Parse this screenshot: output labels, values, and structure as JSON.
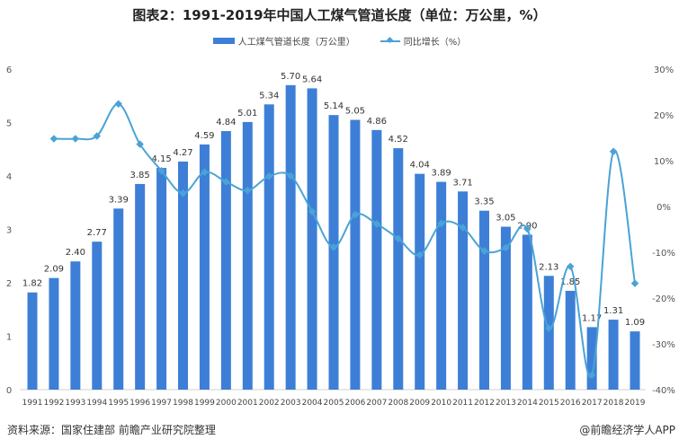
{
  "chart_data": {
    "type": "bar+line",
    "title": "图表2：1991-2019年中国人工煤气管道长度（单位：万公里，%）",
    "categories": [
      "1991",
      "1992",
      "1993",
      "1994",
      "1995",
      "1996",
      "1997",
      "1998",
      "1999",
      "2000",
      "2001",
      "2002",
      "2003",
      "2004",
      "2005",
      "2006",
      "2007",
      "2008",
      "2009",
      "2010",
      "2011",
      "2012",
      "2013",
      "2014",
      "2015",
      "2016",
      "2017",
      "2018",
      "2019"
    ],
    "series": [
      {
        "name": "人工煤气管道长度（万公里）",
        "type": "bar",
        "axis": "left",
        "color": "#3d7fd6",
        "values": [
          1.82,
          2.09,
          2.4,
          2.77,
          3.39,
          3.85,
          4.15,
          4.27,
          4.59,
          4.84,
          5.01,
          5.34,
          5.7,
          5.64,
          5.14,
          5.05,
          4.86,
          4.52,
          4.04,
          3.89,
          3.71,
          3.35,
          3.05,
          2.9,
          2.13,
          1.85,
          1.17,
          1.31,
          1.09
        ],
        "labels": [
          "1.82",
          "2.09",
          "2.40",
          "2.77",
          "3.39",
          "3.85",
          "4.15",
          "4.27",
          "4.59",
          "4.84",
          "5.01",
          "5.34",
          "5.70",
          "5.64",
          "5.14",
          "5.05",
          "4.86",
          "4.52",
          "4.04",
          "3.89",
          "3.71",
          "3.35",
          "3.05",
          "2.90",
          "2.13",
          "1.85",
          "1.17",
          "1.31",
          "1.09"
        ]
      },
      {
        "name": "同比增长（%）",
        "type": "line",
        "axis": "right",
        "color": "#4aa3d6",
        "values": [
          null,
          14.8,
          14.8,
          15.4,
          22.4,
          13.6,
          7.8,
          2.9,
          7.5,
          5.4,
          3.5,
          6.6,
          6.7,
          -1.1,
          -8.9,
          -1.8,
          -3.8,
          -7.0,
          -10.6,
          -3.7,
          -4.6,
          -9.7,
          -9.0,
          -4.9,
          -26.6,
          -13.1,
          -36.8,
          12.0,
          -16.8
        ]
      }
    ],
    "left_axis": {
      "range": [
        0,
        6
      ],
      "ticks": [
        "0",
        "1",
        "2",
        "3",
        "4",
        "5",
        "6"
      ]
    },
    "right_axis": {
      "range": [
        -40,
        30
      ],
      "ticks": [
        "-40%",
        "-30%",
        "-20%",
        "-10%",
        "0%",
        "10%",
        "20%",
        "30%"
      ]
    },
    "grid": false,
    "legend_position": "top-center"
  },
  "footer": {
    "source": "资料来源：国家住建部 前瞻产业研究院整理",
    "credit": "@前瞻经济学人APP"
  }
}
